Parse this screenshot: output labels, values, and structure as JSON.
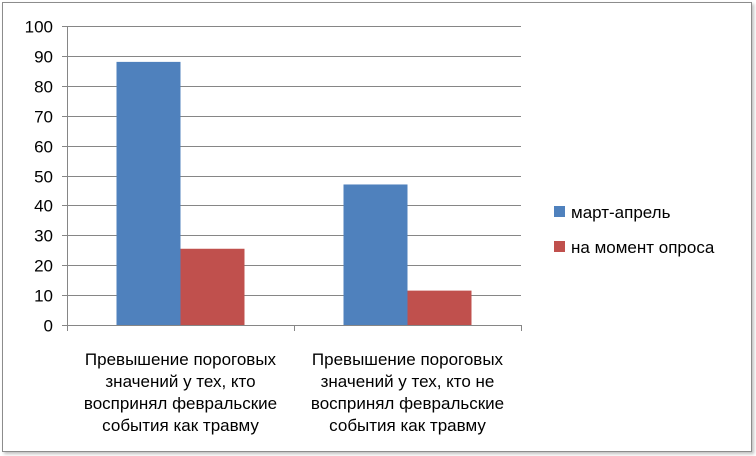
{
  "chart_data": {
    "type": "bar",
    "categories": [
      [
        "Превышение пороговых",
        "значений у тех, кто",
        "воспринял февральские",
        "события как травму"
      ],
      [
        "Превышение пороговых",
        "значений у тех, кто не",
        "воспринял февральские",
        "события как травму"
      ]
    ],
    "series": [
      {
        "name": "март-апрель",
        "values": [
          88,
          47
        ],
        "color": "#4f81bd"
      },
      {
        "name": "на момент опроса",
        "values": [
          25.5,
          11.5
        ],
        "color": "#c0504d"
      }
    ],
    "ylim": [
      0,
      100
    ],
    "yticks": [
      0,
      10,
      20,
      30,
      40,
      50,
      60,
      70,
      80,
      90,
      100
    ],
    "grid": true,
    "legend_position": "right"
  }
}
